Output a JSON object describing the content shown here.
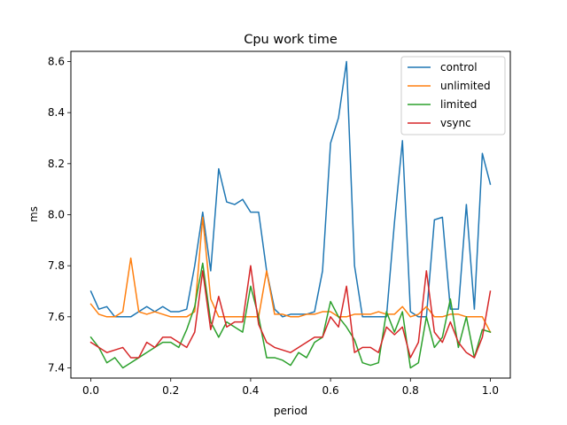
{
  "chart_data": {
    "type": "line",
    "title": "Cpu work time",
    "xlabel": "period",
    "ylabel": "ms",
    "xlim": [
      -0.05,
      1.05
    ],
    "ylim": [
      7.36,
      8.64
    ],
    "xticks": [
      0.0,
      0.2,
      0.4,
      0.6,
      0.8,
      1.0
    ],
    "xtick_labels": [
      "0.0",
      "0.2",
      "0.4",
      "0.6",
      "0.8",
      "1.0"
    ],
    "yticks": [
      7.4,
      7.6,
      7.8,
      8.0,
      8.2,
      8.4,
      8.6
    ],
    "ytick_labels": [
      "7.4",
      "7.6",
      "7.8",
      "8.0",
      "8.2",
      "8.4",
      "8.6"
    ],
    "grid": false,
    "legend_position": "top-right",
    "x": [
      0.0,
      0.02,
      0.04,
      0.06,
      0.08,
      0.1,
      0.12,
      0.14,
      0.16,
      0.18,
      0.2,
      0.22,
      0.24,
      0.26,
      0.28,
      0.3,
      0.32,
      0.34,
      0.36,
      0.38,
      0.4,
      0.42,
      0.44,
      0.46,
      0.48,
      0.5,
      0.52,
      0.54,
      0.56,
      0.58,
      0.6,
      0.62,
      0.64,
      0.66,
      0.68,
      0.7,
      0.72,
      0.74,
      0.76,
      0.78,
      0.8,
      0.82,
      0.84,
      0.86,
      0.88,
      0.9,
      0.92,
      0.94,
      0.96,
      0.98,
      1.0
    ],
    "series": [
      {
        "name": "control",
        "color": "#1f77b4",
        "values": [
          7.7,
          7.63,
          7.64,
          7.6,
          7.6,
          7.6,
          7.62,
          7.64,
          7.62,
          7.64,
          7.62,
          7.62,
          7.63,
          7.8,
          8.01,
          7.78,
          8.18,
          8.05,
          8.04,
          8.06,
          8.01,
          8.01,
          7.78,
          7.63,
          7.6,
          7.61,
          7.61,
          7.61,
          7.62,
          7.78,
          8.28,
          8.38,
          8.6,
          7.8,
          7.6,
          7.6,
          7.6,
          7.6,
          7.97,
          8.29,
          7.62,
          7.6,
          7.6,
          7.98,
          7.99,
          7.63,
          7.63,
          8.04,
          7.63,
          8.24,
          8.12
        ]
      },
      {
        "name": "unlimited",
        "color": "#ff7f0e",
        "values": [
          7.65,
          7.61,
          7.6,
          7.6,
          7.62,
          7.83,
          7.62,
          7.61,
          7.62,
          7.61,
          7.6,
          7.6,
          7.6,
          7.62,
          7.99,
          7.67,
          7.6,
          7.6,
          7.6,
          7.6,
          7.6,
          7.6,
          7.78,
          7.61,
          7.61,
          7.6,
          7.6,
          7.61,
          7.61,
          7.62,
          7.62,
          7.6,
          7.6,
          7.61,
          7.61,
          7.61,
          7.62,
          7.61,
          7.61,
          7.64,
          7.6,
          7.61,
          7.64,
          7.6,
          7.6,
          7.61,
          7.61,
          7.6,
          7.6,
          7.6,
          7.54
        ]
      },
      {
        "name": "limited",
        "color": "#2ca02c",
        "values": [
          7.52,
          7.48,
          7.42,
          7.44,
          7.4,
          7.42,
          7.44,
          7.46,
          7.48,
          7.5,
          7.5,
          7.48,
          7.55,
          7.64,
          7.81,
          7.58,
          7.52,
          7.58,
          7.56,
          7.54,
          7.72,
          7.6,
          7.44,
          7.44,
          7.43,
          7.41,
          7.46,
          7.44,
          7.5,
          7.52,
          7.66,
          7.6,
          7.56,
          7.51,
          7.42,
          7.41,
          7.42,
          7.62,
          7.54,
          7.62,
          7.4,
          7.42,
          7.6,
          7.48,
          7.52,
          7.67,
          7.48,
          7.6,
          7.44,
          7.55,
          7.54
        ]
      },
      {
        "name": "vsync",
        "color": "#d62728",
        "values": [
          7.5,
          7.48,
          7.46,
          7.47,
          7.48,
          7.44,
          7.44,
          7.5,
          7.48,
          7.52,
          7.52,
          7.5,
          7.48,
          7.54,
          7.78,
          7.55,
          7.68,
          7.56,
          7.58,
          7.58,
          7.8,
          7.57,
          7.5,
          7.48,
          7.47,
          7.46,
          7.48,
          7.5,
          7.52,
          7.52,
          7.6,
          7.56,
          7.72,
          7.46,
          7.48,
          7.48,
          7.46,
          7.56,
          7.53,
          7.56,
          7.44,
          7.5,
          7.78,
          7.54,
          7.5,
          7.58,
          7.5,
          7.46,
          7.44,
          7.52,
          7.7
        ]
      }
    ]
  }
}
